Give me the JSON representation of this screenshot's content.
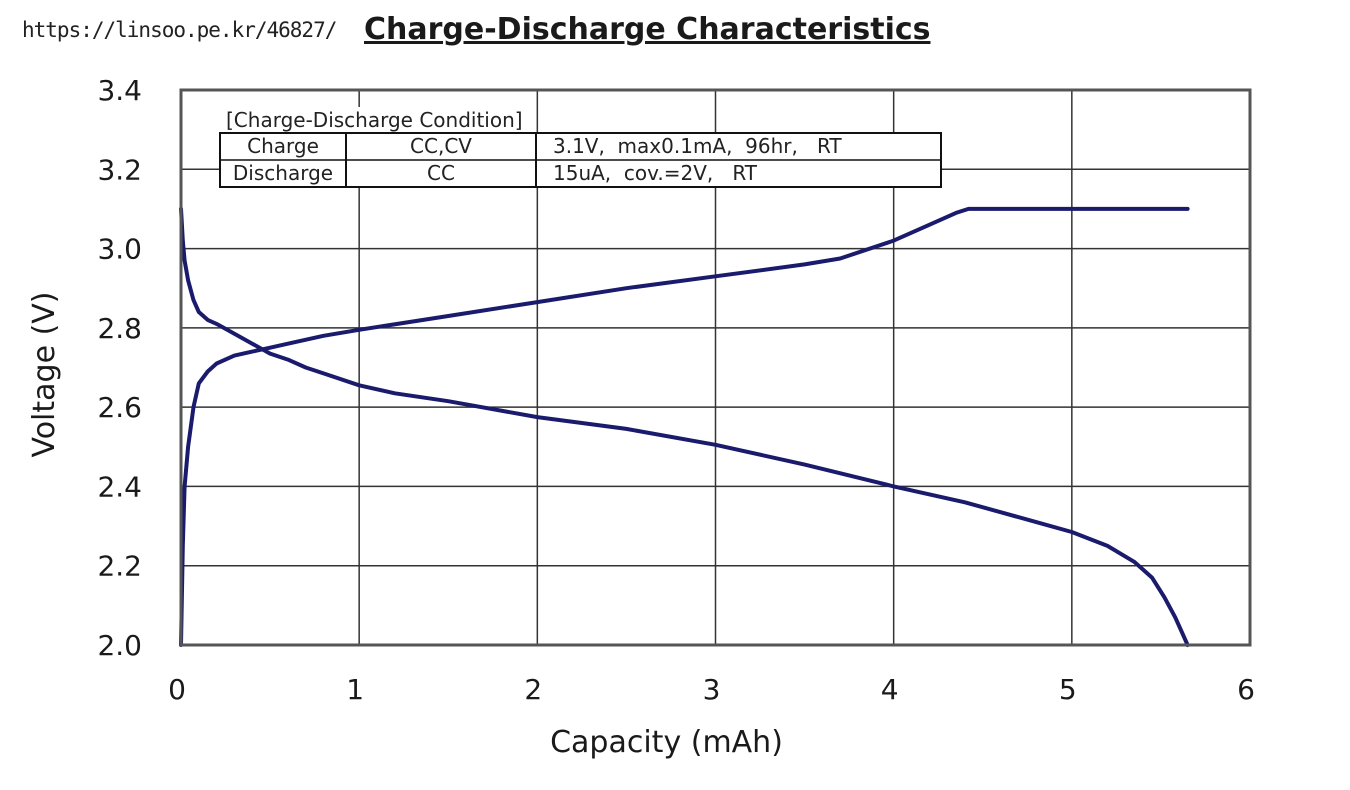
{
  "watermark": "https://linsoo.pe.kr/46827/",
  "chart_data": {
    "type": "line",
    "title": "Charge-Discharge Characteristics",
    "xlabel": "Capacity (mAh)",
    "ylabel": "Voltage (V)",
    "xlim": [
      0,
      6
    ],
    "ylim": [
      2.0,
      3.4
    ],
    "xticks": [
      "0",
      "1",
      "2",
      "3",
      "4",
      "5",
      "6"
    ],
    "yticks": [
      "2.0",
      "2.2",
      "2.4",
      "2.6",
      "2.8",
      "3.0",
      "3.2",
      "3.4"
    ],
    "grid": true,
    "line_color": "#1b1b6e",
    "series": [
      {
        "x": [
          0.0,
          0.01,
          0.02,
          0.04,
          0.07,
          0.1,
          0.15,
          0.2,
          0.3,
          0.4,
          0.5,
          0.6,
          0.8,
          1.0,
          1.5,
          2.0,
          2.5,
          3.0,
          3.5,
          3.7,
          4.0,
          4.2,
          4.35,
          4.42,
          4.5,
          4.8,
          5.2,
          5.5,
          5.65
        ],
        "y": [
          2.0,
          2.25,
          2.4,
          2.5,
          2.6,
          2.66,
          2.69,
          2.71,
          2.73,
          2.74,
          2.75,
          2.76,
          2.78,
          2.795,
          2.83,
          2.865,
          2.9,
          2.93,
          2.96,
          2.975,
          3.02,
          3.06,
          3.09,
          3.1,
          3.1,
          3.1,
          3.1,
          3.1,
          3.1
        ]
      },
      {
        "x": [
          0.0,
          0.01,
          0.02,
          0.04,
          0.07,
          0.1,
          0.15,
          0.2,
          0.3,
          0.4,
          0.5,
          0.6,
          0.7,
          0.8,
          1.0,
          1.2,
          1.5,
          2.0,
          2.5,
          3.0,
          3.5,
          4.0,
          4.4,
          4.6,
          4.8,
          5.0,
          5.2,
          5.35,
          5.45,
          5.52,
          5.58,
          5.62,
          5.65
        ],
        "y": [
          3.1,
          3.02,
          2.97,
          2.92,
          2.87,
          2.84,
          2.82,
          2.81,
          2.785,
          2.76,
          2.735,
          2.72,
          2.7,
          2.685,
          2.655,
          2.635,
          2.615,
          2.575,
          2.545,
          2.505,
          2.455,
          2.4,
          2.36,
          2.335,
          2.31,
          2.285,
          2.25,
          2.21,
          2.17,
          2.12,
          2.07,
          2.03,
          2.0
        ]
      }
    ],
    "condition_table": {
      "caption": "[Charge-Discharge Condition]",
      "rows": [
        [
          "Charge",
          "CC,CV",
          "3.1V,  max0.1mA,  96hr,   RT"
        ],
        [
          "Discharge",
          "CC",
          "15uA,  cov.=2V,   RT"
        ]
      ]
    }
  }
}
